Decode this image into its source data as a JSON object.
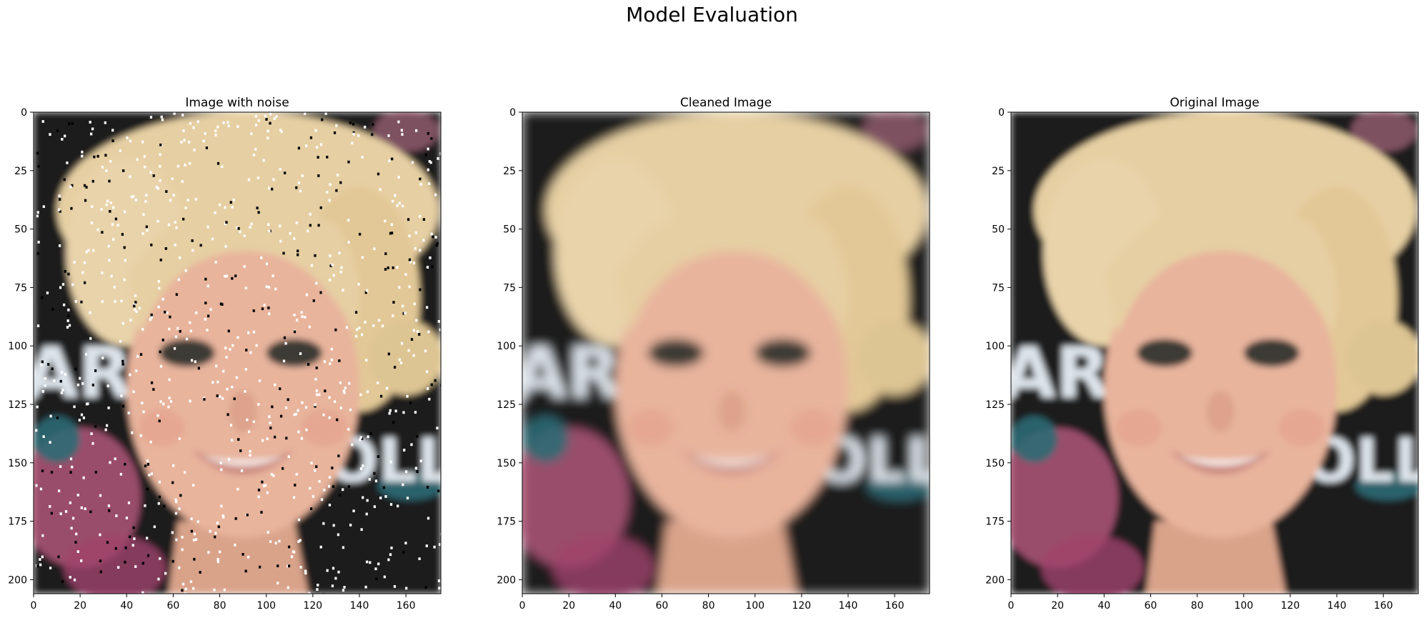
{
  "figure": {
    "suptitle": "Model Evaluation"
  },
  "chart_data": [
    {
      "type": "image",
      "title": "Image with noise",
      "xlim": [
        0,
        175
      ],
      "ylim": [
        206,
        0
      ],
      "xticks": [
        0,
        20,
        40,
        60,
        80,
        100,
        120,
        140,
        160
      ],
      "yticks": [
        0,
        25,
        50,
        75,
        100,
        125,
        150,
        175,
        200
      ],
      "noise": "salt-and-pepper"
    },
    {
      "type": "image",
      "title": "Cleaned Image",
      "xlim": [
        0,
        175
      ],
      "ylim": [
        206,
        0
      ],
      "xticks": [
        0,
        20,
        40,
        60,
        80,
        100,
        120,
        140,
        160
      ],
      "yticks": [
        0,
        25,
        50,
        75,
        100,
        125,
        150,
        175,
        200
      ],
      "noise": "none"
    },
    {
      "type": "image",
      "title": "Original Image",
      "xlim": [
        0,
        175
      ],
      "ylim": [
        206,
        0
      ],
      "xticks": [
        0,
        20,
        40,
        60,
        80,
        100,
        120,
        140,
        160
      ],
      "yticks": [
        0,
        25,
        50,
        75,
        100,
        125,
        150,
        175,
        200
      ],
      "noise": "none"
    }
  ],
  "colors": {
    "background_dark": "#1c1a1f",
    "hair": "#e6cfa3",
    "skin": "#e8b49c",
    "lips": "#c9877f",
    "eyes": "#3e3a35",
    "letters": "#dde4ea",
    "flowers": "#c45f86",
    "teal": "#2e6a74"
  }
}
